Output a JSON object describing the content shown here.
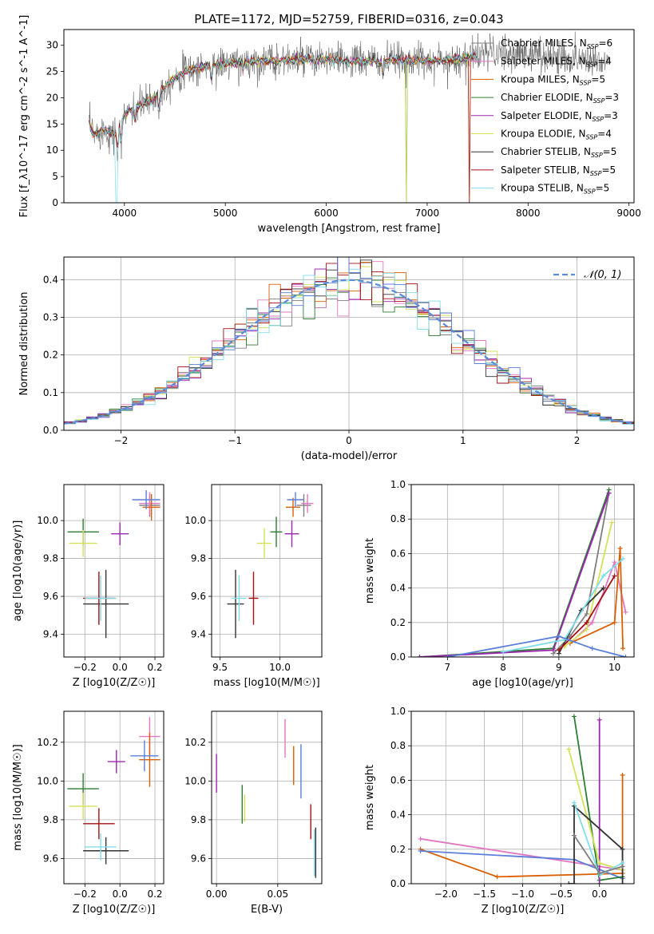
{
  "colors": {
    "models": [
      "#7f7f7f",
      "#e377c2",
      "#d95f02",
      "#2e7d32",
      "#9c27b0",
      "#d4e157",
      "#333333",
      "#a50f15",
      "#80deea"
    ],
    "model_names_color_order": "same as spectrum legend entries",
    "normal_curve": "#5b8bd9",
    "extra_model": "#5b7fdb"
  },
  "chart_data": [
    {
      "id": "spectrum",
      "type": "line",
      "title": "PLATE=1172, MJD=52759, FIBERID=0316, z=0.043",
      "xlabel": "wavelength [Angstrom, rest frame]",
      "ylabel": "Flux [f_λ10^-17 erg cm^-2 s^-1 A^-1]",
      "xlim": [
        3400,
        9050
      ],
      "ylim": [
        0,
        33
      ],
      "xticks": [
        "4000",
        "5000",
        "6000",
        "7000",
        "8000",
        "9000"
      ],
      "yticks": [
        "0",
        "5",
        "10",
        "15",
        "20",
        "25",
        "30"
      ],
      "legend_position": "right",
      "legend": [
        {
          "model": "Chabrier MILES",
          "n": "6"
        },
        {
          "model": "Salpeter MILES",
          "n": "4"
        },
        {
          "model": "Kroupa MILES",
          "n": "5"
        },
        {
          "model": "Chabrier ELODIE",
          "n": "3"
        },
        {
          "model": "Salpeter ELODIE",
          "n": "3"
        },
        {
          "model": "Kroupa ELODIE",
          "n": "4"
        },
        {
          "model": "Chabrier STELIB",
          "n": "5"
        },
        {
          "model": "Salpeter STELIB",
          "n": "5"
        },
        {
          "model": "Kroupa STELIB",
          "n": "5"
        }
      ],
      "observed_continuum": {
        "x": [
          3650,
          3700,
          3800,
          3900,
          4000,
          4100,
          4200,
          4300,
          4400,
          4500,
          4600,
          4700,
          4800,
          5000,
          5200,
          5400,
          5600,
          5800,
          6000,
          6200,
          6400,
          6600,
          6800,
          7000,
          7200,
          7400,
          7600,
          7800,
          8000,
          8200,
          8400,
          8600,
          8800
        ],
        "y": [
          15,
          13,
          14,
          13,
          17,
          18,
          19,
          20,
          22,
          24,
          25,
          25.5,
          26,
          26.5,
          26.8,
          27,
          27.2,
          27.3,
          27.2,
          27,
          27,
          27,
          27.2,
          27,
          27.2,
          27.5,
          29,
          28,
          28.5,
          28,
          27.5,
          27.5,
          27
        ]
      }
    },
    {
      "id": "residual_histogram",
      "type": "bar",
      "xlabel": "(data-model)/error",
      "ylabel": "Normed distribution",
      "xlim": [
        -2.5,
        2.5
      ],
      "ylim": [
        0,
        0.46
      ],
      "xticks": [
        "−2",
        "−1",
        "0",
        "1",
        "2"
      ],
      "yticks": [
        "0.0",
        "0.1",
        "0.2",
        "0.3",
        "0.4"
      ],
      "legend_position": "top-right",
      "legend": [
        "𝒩(0, 1)"
      ],
      "bin_width": 0.1,
      "normal_mean": 0,
      "normal_sigma": 1
    },
    {
      "id": "age_vs_Z",
      "type": "scatter",
      "xlabel": "Z [log10(Z/Z☉)]",
      "ylabel": "age  [log10(age/yr)]",
      "xlim": [
        -0.32,
        0.25
      ],
      "ylim": [
        9.28,
        10.19
      ],
      "xticks": [
        "−0.2",
        "0.0",
        "0.2"
      ],
      "yticks": [
        "9.4",
        "9.6",
        "9.8",
        "10.0"
      ],
      "points": [
        {
          "x": 0.17,
          "y": 10.08,
          "xerr": 0.06,
          "yerr": 0.06,
          "c": 0
        },
        {
          "x": 0.17,
          "y": 10.09,
          "xerr": 0.06,
          "yerr": 0.06,
          "c": 1
        },
        {
          "x": 0.18,
          "y": 10.07,
          "xerr": 0.05,
          "yerr": 0.07,
          "c": 2
        },
        {
          "x": -0.21,
          "y": 9.94,
          "xerr": 0.09,
          "yerr": 0.07,
          "c": 3
        },
        {
          "x": 0.0,
          "y": 9.93,
          "xerr": 0.05,
          "yerr": 0.06,
          "c": 4
        },
        {
          "x": -0.21,
          "y": 9.88,
          "xerr": 0.08,
          "yerr": 0.07,
          "c": 5
        },
        {
          "x": -0.08,
          "y": 9.56,
          "xerr": 0.13,
          "yerr": 0.18,
          "c": 6
        },
        {
          "x": -0.12,
          "y": 9.59,
          "xerr": 0.09,
          "yerr": 0.14,
          "c": 7
        },
        {
          "x": -0.11,
          "y": 9.59,
          "xerr": 0.09,
          "yerr": 0.12,
          "c": 8
        },
        {
          "x": 0.15,
          "y": 10.11,
          "xerr": 0.08,
          "yerr": 0.05,
          "c": 9
        }
      ]
    },
    {
      "id": "age_vs_mass",
      "type": "scatter",
      "xlabel": "mass [log10(M/M☉)]",
      "ylabel": "",
      "xlim": [
        9.43,
        10.35
      ],
      "ylim": [
        9.28,
        10.19
      ],
      "xticks": [
        "9.5",
        "10.0"
      ],
      "yticks": [
        "9.4",
        "9.6",
        "9.8",
        "10.0"
      ],
      "points": [
        {
          "x": 10.2,
          "y": 10.08,
          "xerr": 0.06,
          "yerr": 0.06,
          "c": 0
        },
        {
          "x": 10.23,
          "y": 10.09,
          "xerr": 0.05,
          "yerr": 0.05,
          "c": 1
        },
        {
          "x": 10.11,
          "y": 10.07,
          "xerr": 0.06,
          "yerr": 0.05,
          "c": 2
        },
        {
          "x": 9.97,
          "y": 9.94,
          "xerr": 0.05,
          "yerr": 0.08,
          "c": 3
        },
        {
          "x": 10.1,
          "y": 9.93,
          "xerr": 0.06,
          "yerr": 0.07,
          "c": 4
        },
        {
          "x": 9.87,
          "y": 9.88,
          "xerr": 0.06,
          "yerr": 0.08,
          "c": 5
        },
        {
          "x": 9.63,
          "y": 9.56,
          "xerr": 0.07,
          "yerr": 0.18,
          "c": 6
        },
        {
          "x": 9.78,
          "y": 9.59,
          "xerr": 0.04,
          "yerr": 0.14,
          "c": 7
        },
        {
          "x": 9.66,
          "y": 9.59,
          "xerr": 0.06,
          "yerr": 0.12,
          "c": 8
        },
        {
          "x": 10.13,
          "y": 10.11,
          "xerr": 0.07,
          "yerr": 0.04,
          "c": 9
        }
      ]
    },
    {
      "id": "mass_weight_vs_age",
      "type": "line",
      "xlabel": "age  [log10(age/yr)]",
      "ylabel": "mass weight",
      "xlim": [
        6.35,
        10.35
      ],
      "ylim": [
        0,
        1.0
      ],
      "xticks": [
        "7",
        "8",
        "9",
        "10"
      ],
      "yticks": [
        "0.0",
        "0.2",
        "0.4",
        "0.6",
        "0.8",
        "1.0"
      ],
      "series": [
        {
          "c": 0,
          "x": [
            8.9,
            9.2,
            9.5,
            9.9
          ],
          "y": [
            0.02,
            0.12,
            0.25,
            0.95
          ]
        },
        {
          "c": 1,
          "x": [
            9.2,
            9.6,
            10.0,
            10.2
          ],
          "y": [
            0.08,
            0.2,
            0.55,
            0.26
          ]
        },
        {
          "c": 2,
          "x": [
            9.2,
            10.0,
            10.1,
            10.15
          ],
          "y": [
            0.08,
            0.2,
            0.63,
            0.05
          ]
        },
        {
          "c": 3,
          "x": [
            6.5,
            8.9,
            9.9
          ],
          "y": [
            0.0,
            0.05,
            0.97
          ]
        },
        {
          "c": 4,
          "x": [
            6.5,
            8.9,
            9.9
          ],
          "y": [
            0.0,
            0.04,
            0.95
          ]
        },
        {
          "c": 5,
          "x": [
            9.1,
            9.5,
            9.95
          ],
          "y": [
            0.06,
            0.16,
            0.78
          ]
        },
        {
          "c": 6,
          "x": [
            9.0,
            9.4,
            9.8
          ],
          "y": [
            0.02,
            0.27,
            0.4
          ]
        },
        {
          "c": 7,
          "x": [
            9.0,
            9.5,
            10.0
          ],
          "y": [
            0.04,
            0.2,
            0.47
          ]
        },
        {
          "c": 8,
          "x": [
            8.0,
            9.1,
            9.8,
            10.15
          ],
          "y": [
            0.03,
            0.1,
            0.47,
            0.57
          ]
        },
        {
          "c": 9,
          "x": [
            7.0,
            9.0,
            9.6,
            10.2
          ],
          "y": [
            0.0,
            0.12,
            0.05,
            0.0
          ]
        }
      ]
    },
    {
      "id": "mass_vs_Z",
      "type": "scatter",
      "xlabel": "Z [log10(Z/Z☉)]",
      "ylabel": "mass [log10(M/M☉)]",
      "xlim": [
        -0.32,
        0.25
      ],
      "ylim": [
        9.47,
        10.36
      ],
      "xticks": [
        "−0.2",
        "0.0",
        "0.2"
      ],
      "yticks": [
        "9.6",
        "9.8",
        "10.0",
        "10.2"
      ],
      "points": [
        {
          "x": 0.17,
          "y": 10.23,
          "xerr": 0.06,
          "yerr": 0.1,
          "c": 1
        },
        {
          "x": 0.17,
          "y": 10.11,
          "xerr": 0.06,
          "yerr": 0.14,
          "c": 2
        },
        {
          "x": 0.14,
          "y": 10.13,
          "xerr": 0.08,
          "yerr": 0.08,
          "c": 9
        },
        {
          "x": -0.21,
          "y": 9.96,
          "xerr": 0.09,
          "yerr": 0.08,
          "c": 3
        },
        {
          "x": -0.02,
          "y": 10.1,
          "xerr": 0.05,
          "yerr": 0.06,
          "c": 4
        },
        {
          "x": -0.21,
          "y": 9.87,
          "xerr": 0.08,
          "yerr": 0.07,
          "c": 5
        },
        {
          "x": -0.08,
          "y": 9.64,
          "xerr": 0.13,
          "yerr": 0.07,
          "c": 6
        },
        {
          "x": -0.12,
          "y": 9.78,
          "xerr": 0.09,
          "yerr": 0.08,
          "c": 7
        },
        {
          "x": -0.11,
          "y": 9.66,
          "xerr": 0.09,
          "yerr": 0.07,
          "c": 8
        }
      ]
    },
    {
      "id": "mass_vs_ebv",
      "type": "scatter",
      "xlabel": "E(B-V)",
      "ylabel": "",
      "xlim": [
        -0.004,
        0.086
      ],
      "ylim": [
        9.47,
        10.36
      ],
      "xticks": [
        "0.00",
        "0.05"
      ],
      "yticks": [
        "9.6",
        "9.8",
        "10.0",
        "10.2"
      ],
      "points": [
        {
          "x": 0.0,
          "y": 10.04,
          "xerr": 0,
          "yerr": 0.1,
          "c": 4
        },
        {
          "x": 0.021,
          "y": 9.88,
          "xerr": 0,
          "yerr": 0.1,
          "c": 3
        },
        {
          "x": 0.023,
          "y": 9.86,
          "xerr": 0,
          "yerr": 0.07,
          "c": 5
        },
        {
          "x": 0.056,
          "y": 10.22,
          "xerr": 0,
          "yerr": 0.1,
          "c": 1
        },
        {
          "x": 0.063,
          "y": 10.08,
          "xerr": 0,
          "yerr": 0.1,
          "c": 2
        },
        {
          "x": 0.069,
          "y": 10.05,
          "xerr": 0,
          "yerr": 0.14,
          "c": 9
        },
        {
          "x": 0.077,
          "y": 9.79,
          "xerr": 0,
          "yerr": 0.09,
          "c": 7
        },
        {
          "x": 0.08,
          "y": 9.63,
          "xerr": 0,
          "yerr": 0.12,
          "c": 8
        },
        {
          "x": 0.081,
          "y": 9.63,
          "xerr": 0,
          "yerr": 0.13,
          "c": 6
        }
      ]
    },
    {
      "id": "mass_weight_vs_Z",
      "type": "line",
      "xlabel": "Z [log10(Z/Z☉)]",
      "ylabel": "mass weight",
      "xlim": [
        -2.45,
        0.45
      ],
      "ylim": [
        0,
        1.0
      ],
      "xticks": [
        "−2.0",
        "−1.5",
        "−1.0",
        "−0.5",
        "0.0"
      ],
      "yticks": [
        "0.0",
        "0.2",
        "0.4",
        "0.6",
        "0.8",
        "1.0"
      ],
      "series": [
        {
          "c": 1,
          "x": [
            -2.33,
            0.0,
            0.3
          ],
          "y": [
            0.26,
            0.1,
            0.08
          ]
        },
        {
          "c": 2,
          "x": [
            -2.33,
            -1.33,
            0.3,
            0.3
          ],
          "y": [
            0.2,
            0.04,
            0.06,
            0.63
          ]
        },
        {
          "c": 9,
          "x": [
            -2.33,
            -0.33,
            0.3
          ],
          "y": [
            0.19,
            0.14,
            0.03
          ]
        },
        {
          "c": 3,
          "x": [
            -0.33,
            0.0,
            0.3
          ],
          "y": [
            0.97,
            0.02,
            0.04
          ]
        },
        {
          "c": 4,
          "x": [
            0.0,
            0.0
          ],
          "y": [
            0.0,
            0.95
          ]
        },
        {
          "c": 5,
          "x": [
            -0.4,
            0.0,
            0.3
          ],
          "y": [
            0.78,
            0.12,
            0.08
          ]
        },
        {
          "c": 6,
          "x": [
            -0.4,
            -0.33,
            -0.33,
            0.3,
            0.3
          ],
          "y": [
            0.0,
            0.0,
            0.45,
            0.2,
            0.0
          ]
        },
        {
          "c": 8,
          "x": [
            -0.33,
            0.0,
            0.3
          ],
          "y": [
            0.47,
            0.05,
            0.12
          ]
        },
        {
          "c": 0,
          "x": [
            -0.33,
            0.0,
            0.3
          ],
          "y": [
            0.28,
            0.06,
            0.1
          ]
        }
      ]
    }
  ]
}
